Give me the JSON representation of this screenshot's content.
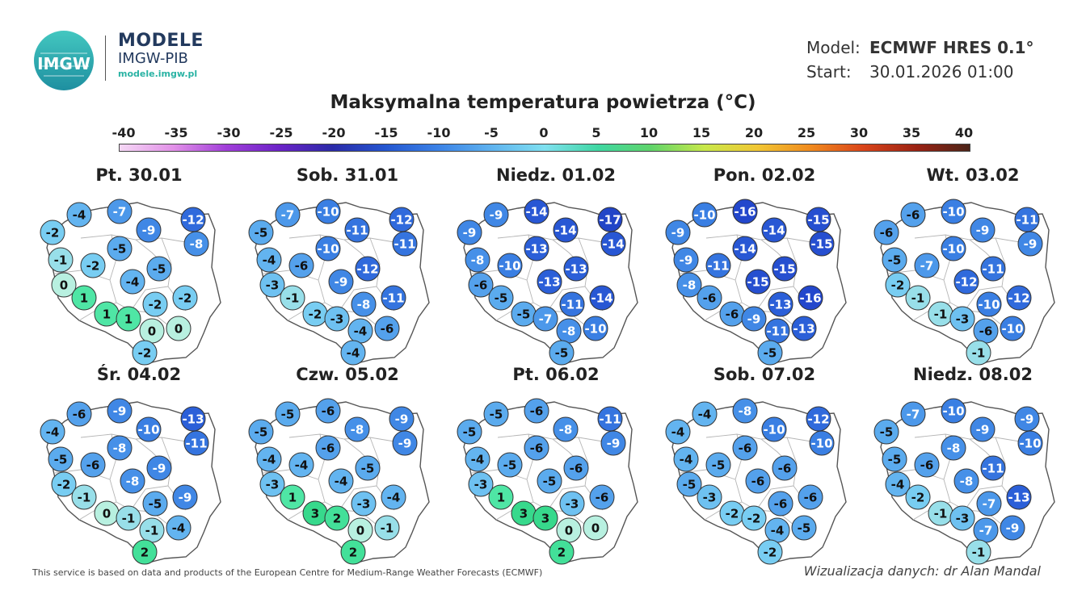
{
  "logo": {
    "badge_text": "IMGW",
    "line1": "MODELE",
    "line2": "IMGW-PIB",
    "line3": "modele.imgw.pl"
  },
  "meta": {
    "model_key": "Model:",
    "model_value": "ECMWF HRES 0.1°",
    "start_key": "Start:",
    "start_value": "30.01.2026 01:00"
  },
  "title": "Maksymalna temperatura powietrza (°C)",
  "scale": {
    "labels": [
      "-40",
      "-35",
      "-30",
      "-25",
      "-20",
      "-15",
      "-10",
      "-5",
      "0",
      "5",
      "10",
      "15",
      "20",
      "25",
      "30",
      "35",
      "40"
    ],
    "colors": [
      "#f5d8f5",
      "#e291e8",
      "#a13fd9",
      "#6b23c7",
      "#2b2aa8",
      "#2456d0",
      "#3b82e6",
      "#5fb3ef",
      "#7fe0f0",
      "#3fd7a2",
      "#5fd46a",
      "#c8e84a",
      "#f1c734",
      "#f08a1e",
      "#d9441a",
      "#9a2213",
      "#4b2418"
    ]
  },
  "panels": [
    {
      "title": "Pt. 30.01",
      "values": [
        -4,
        -7,
        -2,
        -9,
        -12,
        -8,
        -5,
        -1,
        -2,
        -5,
        0,
        -4,
        1,
        -2,
        -2,
        1,
        1,
        0,
        0,
        -2
      ]
    },
    {
      "title": "Sob. 31.01",
      "values": [
        -7,
        -10,
        -5,
        -11,
        -12,
        -11,
        -10,
        -4,
        -6,
        -12,
        -3,
        -9,
        -1,
        -8,
        -11,
        -2,
        -3,
        -4,
        -6,
        -4
      ]
    },
    {
      "title": "Niedz. 01.02",
      "values": [
        -9,
        -14,
        -9,
        -14,
        -17,
        -14,
        -13,
        -8,
        -10,
        -13,
        -6,
        -13,
        -5,
        -11,
        -14,
        -5,
        -7,
        -8,
        -10,
        -5
      ]
    },
    {
      "title": "Pon. 02.02",
      "values": [
        -10,
        -16,
        -9,
        -14,
        -15,
        -15,
        -14,
        -9,
        -11,
        -15,
        -8,
        -15,
        -6,
        -13,
        -16,
        -6,
        -9,
        -11,
        -13,
        -5
      ]
    },
    {
      "title": "Wt. 03.02",
      "values": [
        -6,
        -10,
        -6,
        -9,
        -11,
        -9,
        -10,
        -5,
        -7,
        -11,
        -2,
        -12,
        -1,
        -10,
        -12,
        -1,
        -3,
        -6,
        -10,
        -1
      ]
    },
    {
      "title": "Śr. 04.02",
      "values": [
        -6,
        -9,
        -4,
        -10,
        -13,
        -11,
        -8,
        -5,
        -6,
        -9,
        -2,
        -8,
        -1,
        -5,
        -9,
        0,
        -1,
        -1,
        -4,
        2
      ]
    },
    {
      "title": "Czw. 05.02",
      "values": [
        -5,
        -6,
        -5,
        -8,
        -9,
        -9,
        -6,
        -4,
        -4,
        -5,
        -3,
        -4,
        1,
        -3,
        -4,
        3,
        2,
        0,
        -1,
        2
      ]
    },
    {
      "title": "Pt. 06.02",
      "values": [
        -5,
        -6,
        -5,
        -8,
        -11,
        -9,
        -6,
        -4,
        -5,
        -6,
        -3,
        -5,
        1,
        -3,
        -6,
        3,
        3,
        0,
        0,
        2
      ]
    },
    {
      "title": "Sob. 07.02",
      "values": [
        -4,
        -8,
        -4,
        -10,
        -12,
        -10,
        -6,
        -4,
        -5,
        -6,
        -5,
        -6,
        -3,
        -6,
        -6,
        -2,
        -2,
        -4,
        -5,
        -2
      ]
    },
    {
      "title": "Niedz. 08.02",
      "values": [
        -7,
        -10,
        -5,
        -9,
        -9,
        -10,
        -8,
        -5,
        -6,
        -11,
        -4,
        -8,
        -2,
        -7,
        -13,
        -1,
        -3,
        -7,
        -9,
        -1
      ]
    }
  ],
  "footer": "This service is based on data and products of the European Centre for Medium-Range Weather Forecasts (ECMWF)",
  "credit": "Wizualizacja danych: dr Alan Mandal"
}
